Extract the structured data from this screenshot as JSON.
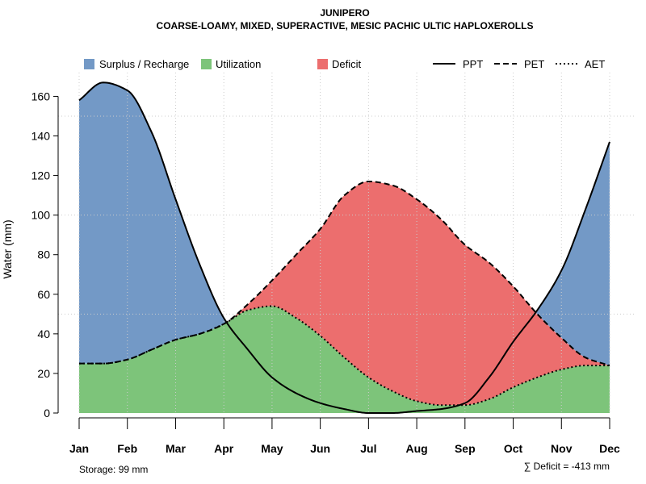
{
  "chart_data": {
    "type": "area",
    "title": "JUNIPERO",
    "subtitle": "COARSE-LOAMY, MIXED, SUPERACTIVE, MESIC PACHIC ULTIC HAPLOXEROLLS",
    "ylabel": "Water (mm)",
    "xlabel": "",
    "ylim": [
      0,
      172
    ],
    "yticks": [
      0,
      20,
      40,
      60,
      80,
      100,
      120,
      140,
      160
    ],
    "grid": true,
    "categories": [
      "Jan",
      "Feb",
      "Mar",
      "Apr",
      "May",
      "Jun",
      "Jul",
      "Aug",
      "Sep",
      "Oct",
      "Nov",
      "Dec"
    ],
    "series": [
      {
        "name": "PPT",
        "style": "solid",
        "x": [
          1,
          1.5,
          2,
          2.5,
          3,
          3.5,
          4,
          4.5,
          5,
          5.5,
          6,
          6.5,
          7,
          7.5,
          8,
          8.5,
          9,
          9.5,
          10,
          10.5,
          11,
          11.5,
          12
        ],
        "values": [
          158,
          167,
          163,
          142,
          108,
          75,
          48,
          32,
          18,
          10,
          5,
          2,
          0,
          0,
          1,
          2,
          5,
          18,
          36,
          52,
          72,
          103,
          137
        ]
      },
      {
        "name": "PET",
        "style": "dashed",
        "x": [
          1,
          1.5,
          2,
          2.5,
          3,
          3.5,
          4,
          4.5,
          5,
          5.5,
          6,
          6.5,
          7,
          7.5,
          8,
          8.5,
          9,
          9.5,
          10,
          10.5,
          11,
          11.5,
          12
        ],
        "values": [
          25,
          25,
          27,
          32,
          37,
          40,
          45,
          55,
          67,
          80,
          93,
          110,
          117,
          115,
          108,
          98,
          85,
          76,
          64,
          50,
          38,
          28,
          24
        ]
      },
      {
        "name": "AET",
        "style": "dotted",
        "x": [
          1,
          1.5,
          2,
          2.5,
          3,
          3.5,
          4,
          4.5,
          5,
          5.5,
          6,
          6.5,
          7,
          7.5,
          8,
          8.5,
          9,
          9.5,
          10,
          10.5,
          11,
          11.5,
          12
        ],
        "values": [
          25,
          25,
          27,
          32,
          37,
          40,
          45,
          52,
          54,
          48,
          39,
          28,
          18,
          11,
          6,
          4,
          4,
          7,
          13,
          18,
          22,
          24,
          24
        ]
      }
    ],
    "areas": [
      {
        "name": "Surplus / Recharge",
        "color": "#7399C6"
      },
      {
        "name": "Utilization",
        "color": "#7DC47A"
      },
      {
        "name": "Deficit",
        "color": "#EC6E6E"
      }
    ],
    "legend_lines": [
      {
        "name": "PPT",
        "style": "solid"
      },
      {
        "name": "PET",
        "style": "dashed"
      },
      {
        "name": "AET",
        "style": "dotted"
      }
    ],
    "legend_position": "top",
    "annotations": {
      "storage": "Storage: 99 mm",
      "deficit": "∑ Deficit = -413 mm"
    }
  }
}
